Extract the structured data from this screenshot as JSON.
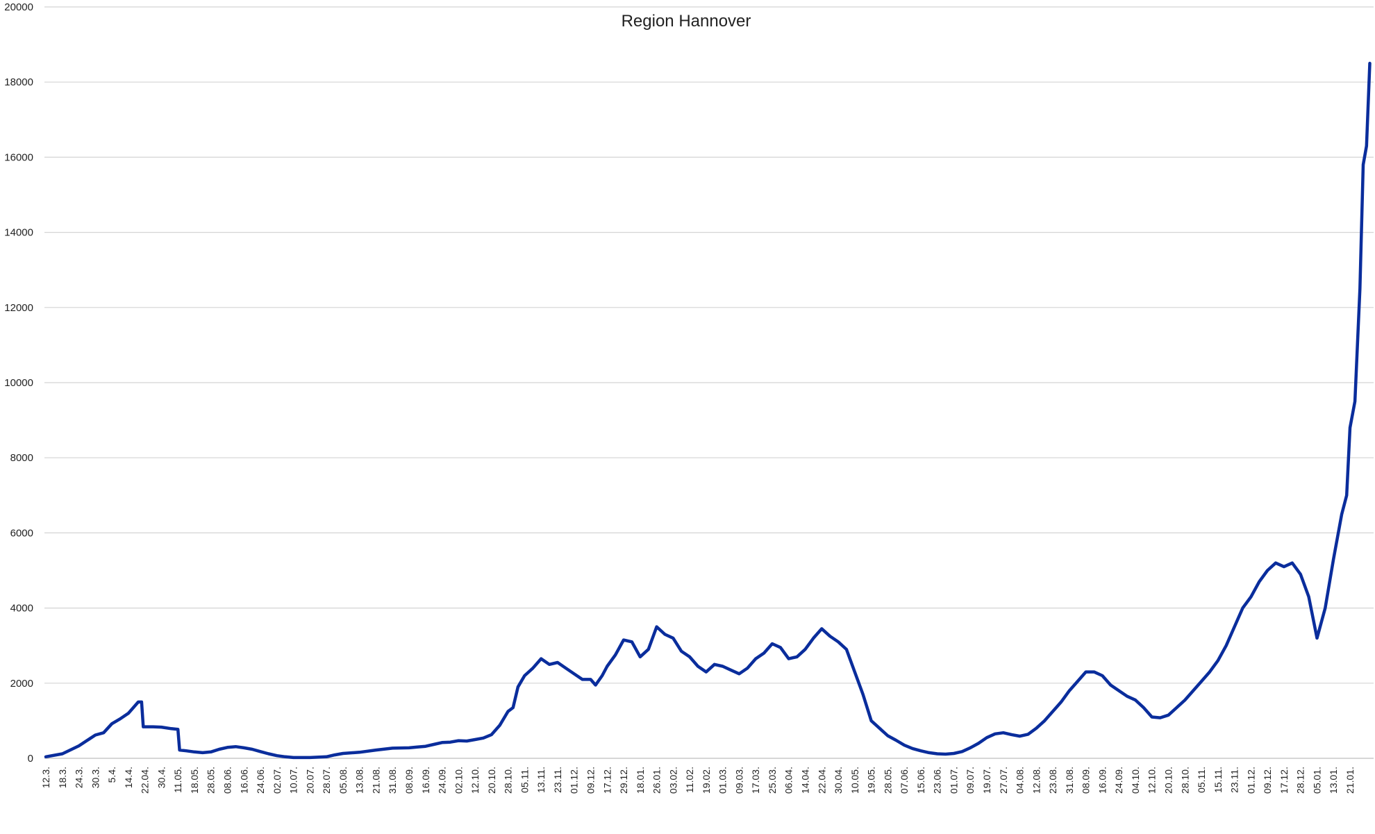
{
  "chart_data": {
    "type": "line",
    "title": "Region Hannover",
    "xlabel": "",
    "ylabel": "",
    "ylim": [
      0,
      20000
    ],
    "yticks": [
      0,
      2000,
      4000,
      6000,
      8000,
      10000,
      12000,
      14000,
      16000,
      18000,
      20000
    ],
    "grid": "horizontal",
    "legend": "none",
    "colors": {
      "series": "#0a2d9c",
      "grid": "#d4d4d4"
    },
    "categories": [
      "12.3.",
      "18.3.",
      "24.3.",
      "30.3.",
      "5.4.",
      "14.4.",
      "22.04.",
      "30.4.",
      "11.05.",
      "18.05.",
      "28.05.",
      "08.06.",
      "16.06.",
      "24.06.",
      "02.07.",
      "10.07.",
      "20.07.",
      "28.07.",
      "05.08.",
      "13.08.",
      "21.08.",
      "31.08.",
      "08.09.",
      "16.09.",
      "24.09.",
      "02.10.",
      "12.10.",
      "20.10.",
      "28.10.",
      "05.11.",
      "13.11.",
      "23.11.",
      "01.12.",
      "09.12.",
      "17.12.",
      "29.12.",
      "18.01.",
      "26.01.",
      "03.02.",
      "11.02.",
      "19.02.",
      "01.03.",
      "09.03.",
      "17.03.",
      "25.03.",
      "06.04.",
      "14.04.",
      "22.04.",
      "30.04.",
      "10.05.",
      "19.05.",
      "28.05.",
      "07.06.",
      "15.06.",
      "23.06.",
      "01.07.",
      "09.07.",
      "19.07.",
      "27.07.",
      "04.08.",
      "12.08.",
      "23.08.",
      "31.08.",
      "08.09.",
      "16.09.",
      "24.09.",
      "04.10.",
      "12.10.",
      "20.10.",
      "28.10.",
      "05.11.",
      "15.11.",
      "23.11.",
      "01.12.",
      "09.12.",
      "17.12.",
      "28.12.",
      "05.01.",
      "13.01.",
      "21.01."
    ],
    "series": [
      {
        "values": [
          [
            0,
            40
          ],
          [
            1,
            120
          ],
          [
            2,
            330
          ],
          [
            3,
            620
          ],
          [
            3.5,
            680
          ],
          [
            4,
            920
          ],
          [
            4.5,
            1050
          ],
          [
            5,
            1200
          ],
          [
            5.6,
            1500
          ],
          [
            5.8,
            1500
          ],
          [
            5.9,
            840
          ],
          [
            6.5,
            840
          ],
          [
            7,
            830
          ],
          [
            7.6,
            790
          ],
          [
            8,
            770
          ],
          [
            8.1,
            220
          ],
          [
            8.5,
            200
          ],
          [
            9,
            170
          ],
          [
            9.5,
            150
          ],
          [
            10,
            170
          ],
          [
            10.5,
            240
          ],
          [
            11,
            290
          ],
          [
            11.5,
            310
          ],
          [
            12,
            280
          ],
          [
            12.5,
            240
          ],
          [
            13,
            180
          ],
          [
            13.5,
            120
          ],
          [
            14,
            70
          ],
          [
            14.5,
            40
          ],
          [
            15,
            20
          ],
          [
            16,
            20
          ],
          [
            17,
            40
          ],
          [
            17.5,
            90
          ],
          [
            18,
            130
          ],
          [
            19,
            160
          ],
          [
            20,
            220
          ],
          [
            21,
            270
          ],
          [
            22,
            280
          ],
          [
            22.5,
            300
          ],
          [
            23,
            320
          ],
          [
            23.5,
            370
          ],
          [
            24,
            420
          ],
          [
            24.5,
            430
          ],
          [
            25,
            470
          ],
          [
            25.5,
            460
          ],
          [
            26,
            500
          ],
          [
            26.5,
            540
          ],
          [
            27,
            630
          ],
          [
            27.5,
            880
          ],
          [
            28,
            1250
          ],
          [
            28.3,
            1350
          ],
          [
            28.6,
            1900
          ],
          [
            29,
            2200
          ],
          [
            29.5,
            2400
          ],
          [
            30,
            2650
          ],
          [
            30.5,
            2500
          ],
          [
            31,
            2550
          ],
          [
            31.5,
            2400
          ],
          [
            32,
            2250
          ],
          [
            32.5,
            2100
          ],
          [
            33,
            2100
          ],
          [
            33.3,
            1950
          ],
          [
            33.7,
            2200
          ],
          [
            34,
            2450
          ],
          [
            34.5,
            2750
          ],
          [
            35,
            3150
          ],
          [
            35.5,
            3100
          ],
          [
            36,
            2700
          ],
          [
            36.5,
            2900
          ],
          [
            37,
            3500
          ],
          [
            37.5,
            3300
          ],
          [
            38,
            3200
          ],
          [
            38.5,
            2850
          ],
          [
            39,
            2700
          ],
          [
            39.5,
            2450
          ],
          [
            40,
            2300
          ],
          [
            40.5,
            2500
          ],
          [
            41,
            2450
          ],
          [
            41.5,
            2350
          ],
          [
            42,
            2250
          ],
          [
            42.5,
            2400
          ],
          [
            43,
            2650
          ],
          [
            43.5,
            2800
          ],
          [
            44,
            3050
          ],
          [
            44.5,
            2950
          ],
          [
            45,
            2650
          ],
          [
            45.5,
            2700
          ],
          [
            46,
            2900
          ],
          [
            46.5,
            3200
          ],
          [
            47,
            3450
          ],
          [
            47.5,
            3250
          ],
          [
            48,
            3100
          ],
          [
            48.5,
            2900
          ],
          [
            49,
            2300
          ],
          [
            49.5,
            1700
          ],
          [
            50,
            1000
          ],
          [
            50.5,
            800
          ],
          [
            51,
            600
          ],
          [
            51.5,
            480
          ],
          [
            52,
            350
          ],
          [
            52.5,
            260
          ],
          [
            53,
            200
          ],
          [
            53.5,
            150
          ],
          [
            54,
            120
          ],
          [
            54.5,
            110
          ],
          [
            55,
            130
          ],
          [
            55.5,
            180
          ],
          [
            56,
            280
          ],
          [
            56.5,
            400
          ],
          [
            57,
            550
          ],
          [
            57.5,
            650
          ],
          [
            58,
            680
          ],
          [
            58.5,
            630
          ],
          [
            59,
            590
          ],
          [
            59.5,
            640
          ],
          [
            60,
            800
          ],
          [
            60.5,
            1000
          ],
          [
            61,
            1250
          ],
          [
            61.5,
            1500
          ],
          [
            62,
            1800
          ],
          [
            62.5,
            2050
          ],
          [
            63,
            2300
          ],
          [
            63.5,
            2300
          ],
          [
            64,
            2200
          ],
          [
            64.5,
            1950
          ],
          [
            65,
            1800
          ],
          [
            65.5,
            1650
          ],
          [
            66,
            1550
          ],
          [
            66.5,
            1350
          ],
          [
            67,
            1100
          ],
          [
            67.5,
            1080
          ],
          [
            68,
            1150
          ],
          [
            68.5,
            1350
          ],
          [
            69,
            1550
          ],
          [
            69.5,
            1800
          ],
          [
            70,
            2050
          ],
          [
            70.5,
            2300
          ],
          [
            71,
            2600
          ],
          [
            71.5,
            3000
          ],
          [
            72,
            3500
          ],
          [
            72.5,
            4000
          ],
          [
            73,
            4300
          ],
          [
            73.5,
            4700
          ],
          [
            74,
            5000
          ],
          [
            74.5,
            5200
          ],
          [
            75,
            5100
          ],
          [
            75.5,
            5200
          ],
          [
            76,
            4900
          ],
          [
            76.5,
            4300
          ],
          [
            77,
            3200
          ],
          [
            77.5,
            4000
          ],
          [
            78,
            5300
          ],
          [
            78.5,
            6500
          ],
          [
            78.8,
            7000
          ],
          [
            79,
            8800
          ],
          [
            79.3,
            9500
          ],
          [
            79.6,
            12500
          ],
          [
            79.8,
            15800
          ],
          [
            80,
            16300
          ],
          [
            80.2,
            18500
          ]
        ]
      }
    ]
  }
}
